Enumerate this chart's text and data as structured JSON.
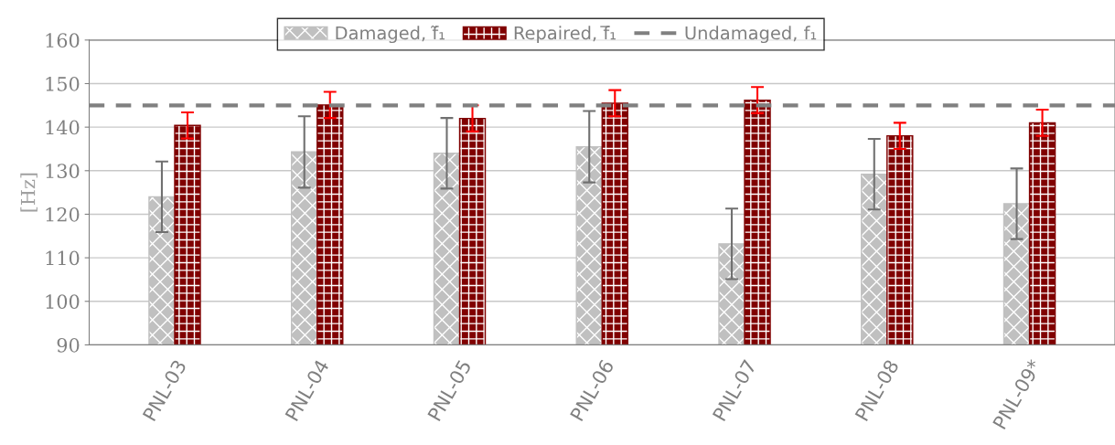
{
  "chart_data": {
    "type": "bar",
    "ylabel": "[Hz]",
    "categories": [
      "PNL-03",
      "PNL-04",
      "PNL-05",
      "PNL-06",
      "PNL-07",
      "PNL-08",
      "PNL-09*"
    ],
    "series": [
      {
        "name": "Damaged, f̃₁",
        "color": "#c0c0c0",
        "values": [
          124.0,
          134.3,
          134.0,
          135.5,
          113.2,
          129.2,
          122.4
        ],
        "errors": [
          8.1,
          8.2,
          8.1,
          8.2,
          8.1,
          8.1,
          8.1
        ]
      },
      {
        "name": "Repaired, f̅₁",
        "color": "#800000",
        "values": [
          140.4,
          145.1,
          142.0,
          145.5,
          146.2,
          138.0,
          141.0
        ],
        "errors": [
          3.0,
          3.0,
          3.0,
          3.0,
          3.0,
          3.0,
          3.0
        ]
      }
    ],
    "ref_lines": [
      {
        "axis": "y",
        "value": 145,
        "label": "Undamaged, f₁",
        "color": "#808080",
        "line_style": "dashed"
      }
    ],
    "ylim": [
      90,
      160
    ],
    "yticks": [
      90,
      100,
      110,
      120,
      130,
      140,
      150,
      160
    ],
    "grid": "y",
    "legend": "top"
  }
}
